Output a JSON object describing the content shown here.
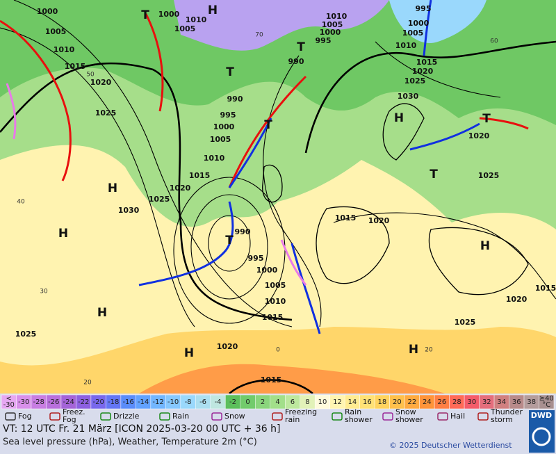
{
  "map": {
    "pressure_labels": [
      "1000",
      "1005",
      "1010",
      "1015",
      "1020",
      "1025",
      "1030",
      "1025",
      "1020",
      "1015",
      "1010",
      "1005",
      "1000",
      "995",
      "990",
      "1000",
      "1005",
      "1010",
      "990",
      "995",
      "1000",
      "1005",
      "1010",
      "1015",
      "1020",
      "1015",
      "1025",
      "1010",
      "1005",
      "1000",
      "995",
      "990",
      "995",
      "1000",
      "1005",
      "1010",
      "1015",
      "1020",
      "1025",
      "1030",
      "1015",
      "1020",
      "1020",
      "1025",
      "1020",
      "1025",
      "1015"
    ],
    "pressure_systems": [
      "H",
      "T",
      "T",
      "T",
      "T",
      "H",
      "H",
      "H",
      "H",
      "T",
      "H",
      "T",
      "T",
      "H",
      "H"
    ],
    "temperature_isotherm_labels": [
      "50",
      "40",
      "30",
      "20",
      "70",
      "60",
      "0",
      "20"
    ]
  },
  "legend": {
    "scale_low": [
      "<",
      "-30"
    ],
    "temperature_scale": [
      -30,
      -28,
      -26,
      -24,
      -22,
      -20,
      -18,
      -16,
      -14,
      -12,
      -10,
      -8,
      -6,
      -4,
      -2,
      0,
      2,
      4,
      6,
      8,
      10,
      12,
      14,
      16,
      18,
      20,
      22,
      24,
      26,
      28,
      30,
      32,
      34,
      36,
      38
    ],
    "scale_high": [
      "≥40",
      "°C"
    ],
    "colors": [
      "#e6a8f2",
      "#d890ea",
      "#c87ee2",
      "#b870dc",
      "#a464d8",
      "#8c60e0",
      "#7868ec",
      "#6476f4",
      "#5a8cfa",
      "#62a2ff",
      "#72b6ff",
      "#86c8ff",
      "#9ad8fc",
      "#acdff0",
      "#bfe6e0",
      "#5cbf5c",
      "#72cb6c",
      "#8ad57c",
      "#a2df8a",
      "#bde89e",
      "#e2f2b8",
      "#fffbdc",
      "#fff5b2",
      "#ffec92",
      "#ffe176",
      "#ffd35e",
      "#ffc04c",
      "#ffaa40",
      "#ff943a",
      "#ff7f44",
      "#ff6a58",
      "#f45c6a",
      "#e46e7c",
      "#d08080",
      "#b88a8a",
      "#b49c9c",
      "#a89090"
    ],
    "weather": [
      [
        "Fog"
      ],
      [
        "Freez.",
        "Fog"
      ],
      [
        "Drizzle"
      ],
      [
        "Rain"
      ],
      [
        "Snow"
      ],
      [
        "Freezing",
        "rain"
      ],
      [
        "Rain",
        "shower"
      ],
      [
        "Snow",
        "shower"
      ],
      [
        "Hail"
      ],
      [
        "Thunder",
        "storm"
      ]
    ]
  },
  "footer": {
    "valid_time": "VT: 12 UTC Fr.  21 März [ICON 2025-03-20  00 UTC + 36 h]",
    "description": "Sea level pressure (hPa), Weather, Temperature 2m (°C)",
    "copyright": "© 2025 Deutscher Wetterdienst",
    "logo": "DWD"
  }
}
